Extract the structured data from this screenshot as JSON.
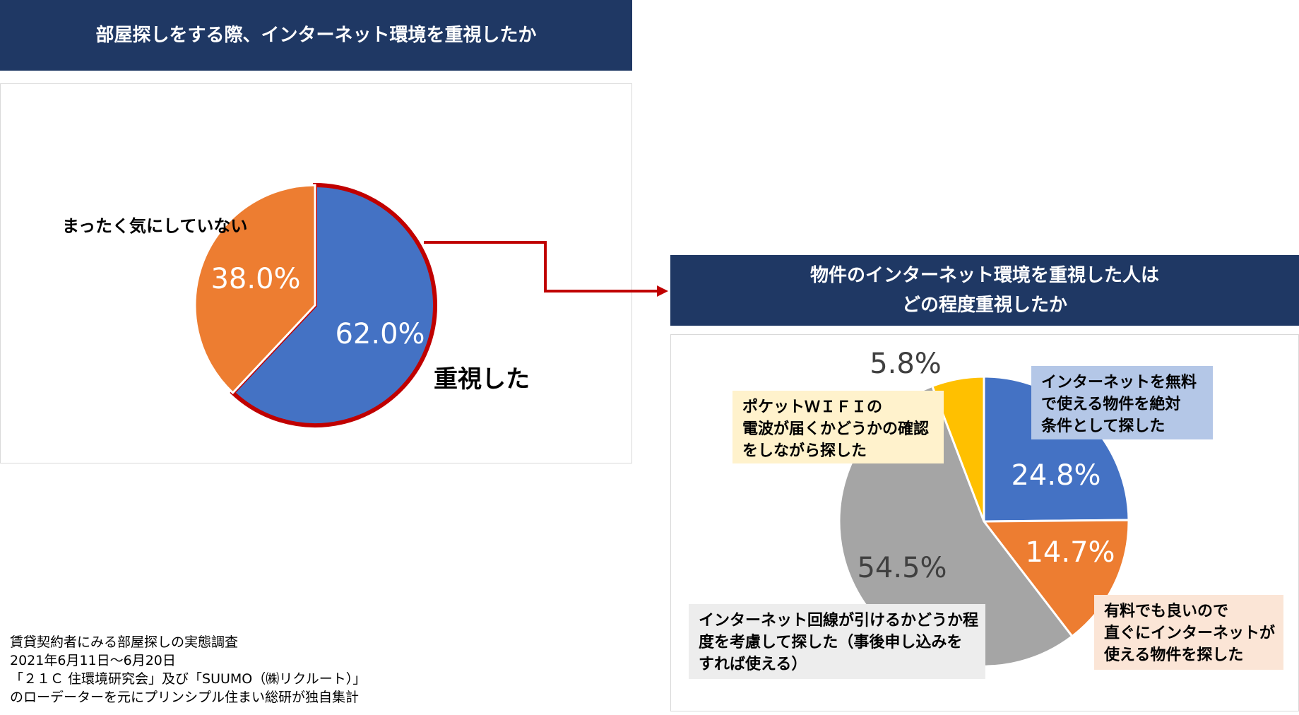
{
  "left": {
    "title": "部屋探しをする際、インターネット環境を重視したか",
    "labels": {
      "not_care": "まったく気にしていない",
      "important": "重視した"
    }
  },
  "right": {
    "title_line1": "物件のインターネット環境を重視した人は",
    "title_line2": "どの程度重視したか",
    "callouts": {
      "free": [
        "インターネットを無料",
        "で使える物件を絶対",
        "条件として探した"
      ],
      "paid": [
        "有料でも良いので",
        "直ぐにインターネットが",
        "使える物件を探した"
      ],
      "line": [
        "インターネット回線が引けるかどうか程",
        "度を考慮して探した（事後申し込みを",
        "すれば使える）"
      ],
      "wifi": [
        "ポケットＷＩＦＩの",
        "電波が届くかどうかの確認",
        "をしながら探した"
      ]
    }
  },
  "source": [
    "賃貸契約者にみる部屋探しの実態調査",
    "2021年6月11日～6月20日",
    "「２１Ｃ 住環境研究会」及び「SUUMO（㈱リクルート）」",
    "のローデーターを元にプリンシプル住まい総研が独自集計"
  ],
  "colors": {
    "banner": "#1f3864",
    "blue": "#4472c4",
    "orange": "#ed7d31",
    "gray": "#a5a5a5",
    "yellow": "#ffc000",
    "highlight": "#c00000"
  },
  "chart_data": [
    {
      "type": "pie",
      "title": "部屋探しをする際、インターネット環境を重視したか",
      "categories": [
        "重視した",
        "まったく気にしていない"
      ],
      "values": [
        62.0,
        38.0
      ],
      "value_labels": [
        "62.0%",
        "38.0%"
      ],
      "colors": [
        "#4472c4",
        "#ed7d31"
      ],
      "start_angle_deg": 0,
      "direction": "clockwise",
      "highlighted": "重視した"
    },
    {
      "type": "pie",
      "title": "物件のインターネット環境を重視した人はどの程度重視したか",
      "categories": [
        "インターネットを無料で使える物件を絶対条件として探した",
        "有料でも良いので直ぐにインターネットが使える物件を探した",
        "インターネット回線が引けるかどうか程度を考慮して探した（事後申し込みをすれば使える）",
        "ポケットＷＩＦＩの電波が届くかどうかの確認をしながら探した"
      ],
      "values": [
        24.8,
        14.7,
        54.5,
        5.8
      ],
      "value_labels": [
        "24.8%",
        "14.7%",
        "54.5%",
        "5.8%"
      ],
      "colors": [
        "#4472c4",
        "#ed7d31",
        "#a5a5a5",
        "#ffc000"
      ],
      "start_angle_deg": 0,
      "direction": "clockwise"
    }
  ]
}
